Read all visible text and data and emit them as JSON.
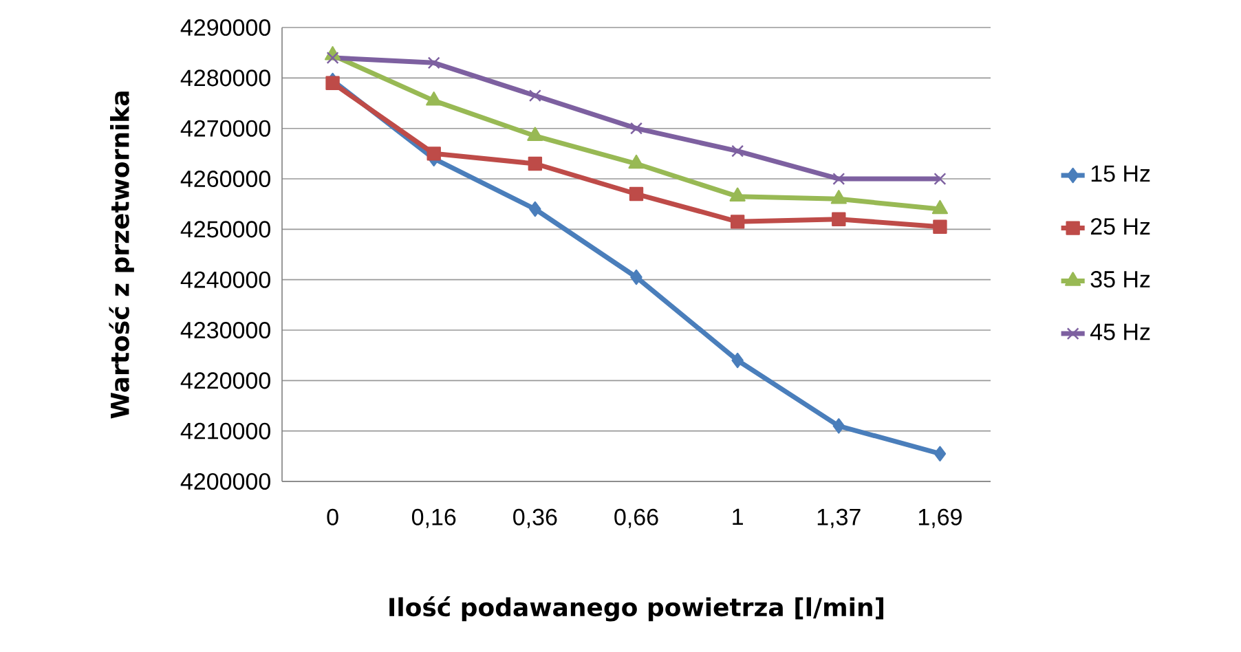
{
  "chart_data": {
    "type": "line",
    "xlabel": "Ilość podawanego powietrza [l/min]",
    "ylabel": "Wartość z przetwornika",
    "categories": [
      "0",
      "0,16",
      "0,36",
      "0,66",
      "1",
      "1,37",
      "1,69"
    ],
    "ylim": [
      4200000,
      4290000
    ],
    "yticks": [
      4200000,
      4210000,
      4220000,
      4230000,
      4240000,
      4250000,
      4260000,
      4270000,
      4280000,
      4290000
    ],
    "grid": "y",
    "legend": "right",
    "series": [
      {
        "name": "15 Hz",
        "color": "#4a7ebb",
        "marker": "diamond",
        "values": [
          4279500,
          4264000,
          4254000,
          4240500,
          4224000,
          4211000,
          4205500
        ]
      },
      {
        "name": "25 Hz",
        "color": "#be4b48",
        "marker": "square",
        "values": [
          4279000,
          4265000,
          4263000,
          4257000,
          4251500,
          4252000,
          4250500
        ]
      },
      {
        "name": "35 Hz",
        "color": "#98b954",
        "marker": "triangle",
        "values": [
          4284500,
          4275500,
          4268500,
          4263000,
          4256500,
          4256000,
          4254000
        ]
      },
      {
        "name": "45 Hz",
        "color": "#7d60a0",
        "marker": "cross",
        "values": [
          4284000,
          4283000,
          4276500,
          4270000,
          4265500,
          4260000,
          4260000
        ]
      }
    ]
  }
}
